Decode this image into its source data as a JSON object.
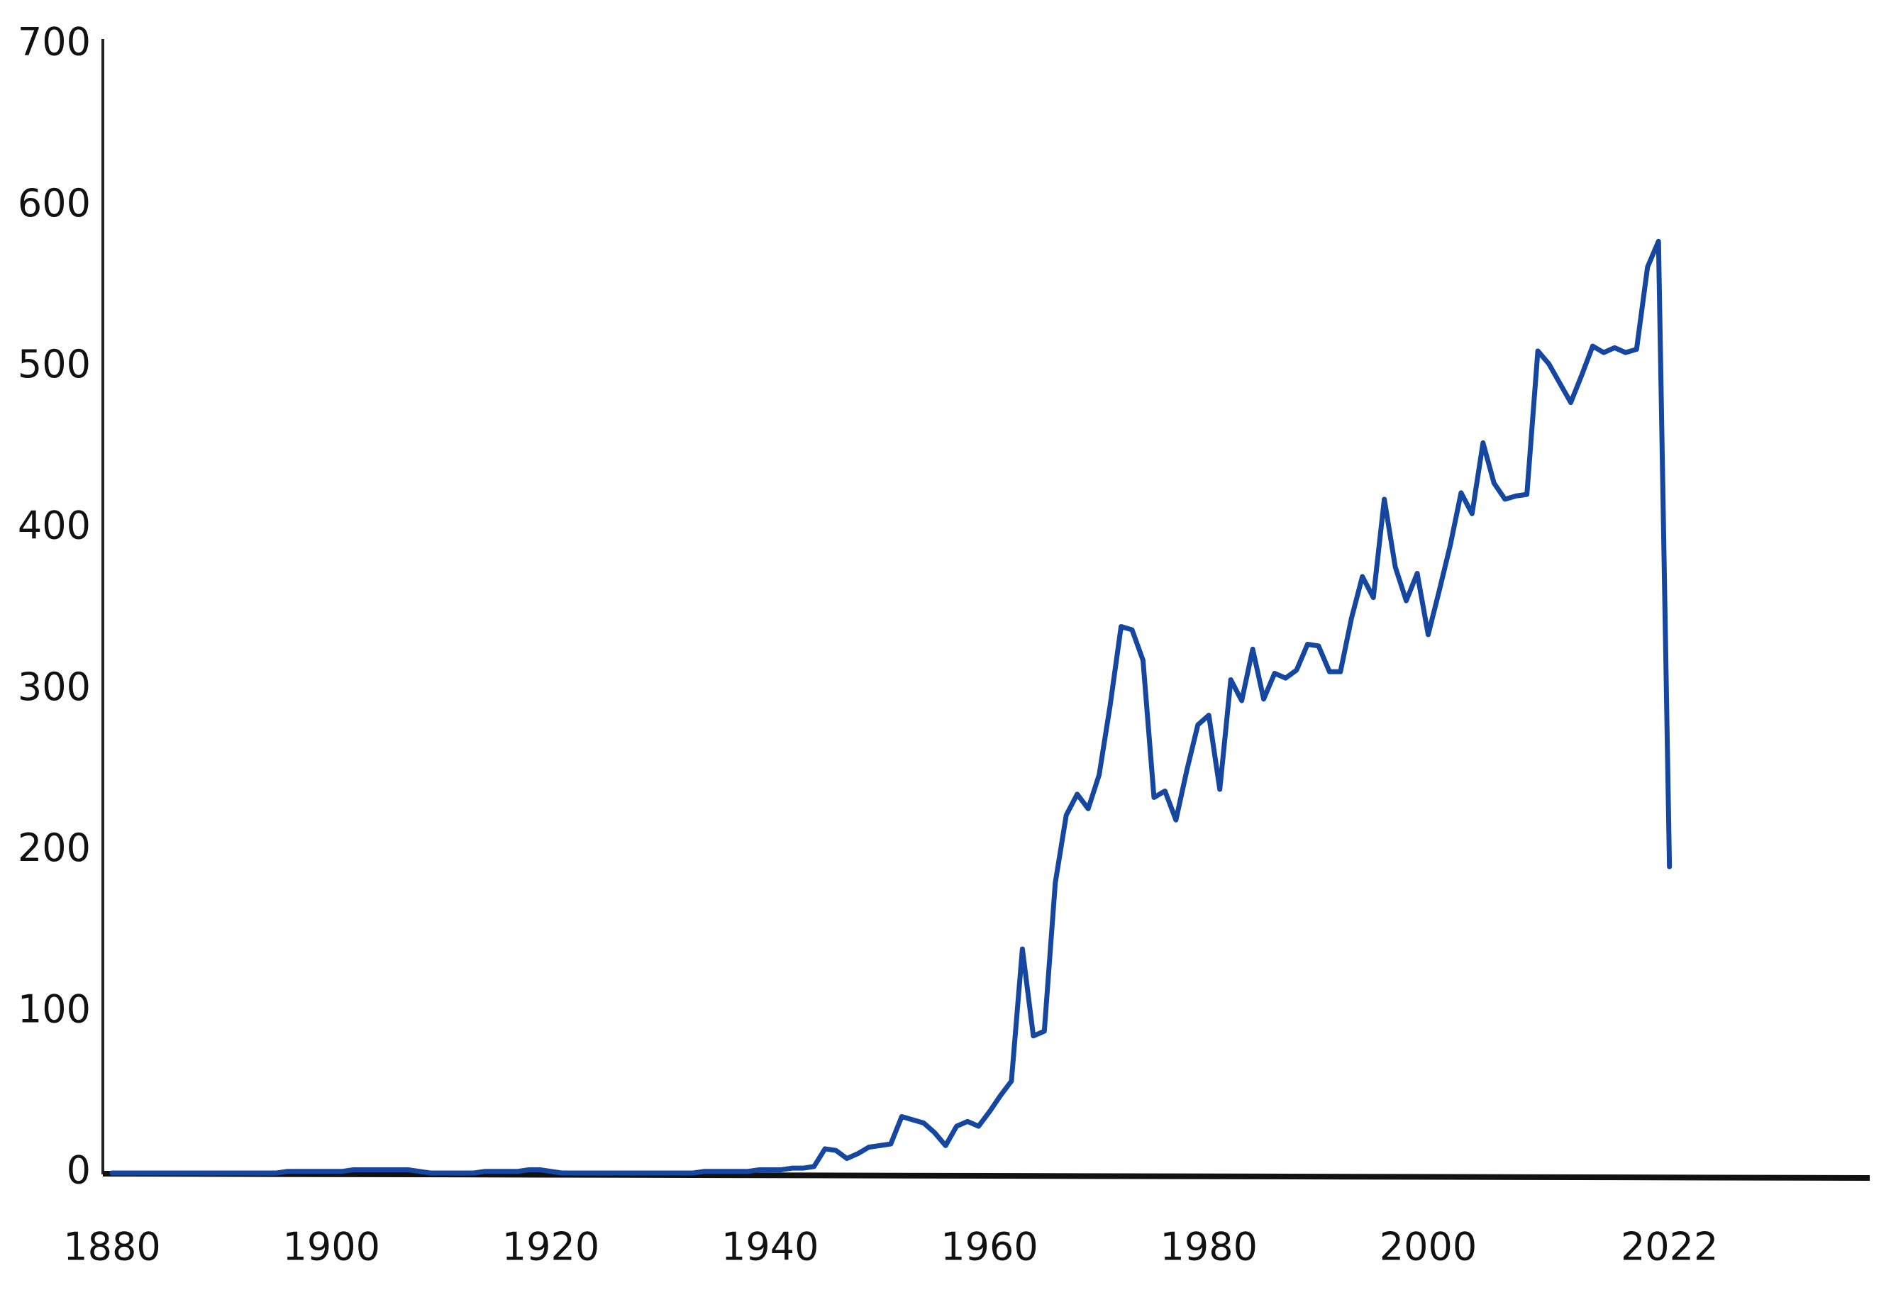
{
  "chart_data": {
    "type": "line",
    "x": [
      1880,
      1881,
      1882,
      1883,
      1884,
      1885,
      1886,
      1887,
      1888,
      1889,
      1890,
      1891,
      1892,
      1893,
      1894,
      1895,
      1896,
      1897,
      1898,
      1899,
      1900,
      1901,
      1902,
      1903,
      1904,
      1905,
      1906,
      1907,
      1908,
      1909,
      1910,
      1911,
      1912,
      1913,
      1914,
      1915,
      1916,
      1917,
      1918,
      1919,
      1920,
      1921,
      1922,
      1923,
      1924,
      1925,
      1926,
      1927,
      1928,
      1929,
      1930,
      1931,
      1932,
      1933,
      1934,
      1935,
      1936,
      1937,
      1938,
      1939,
      1940,
      1941,
      1942,
      1943,
      1944,
      1945,
      1946,
      1947,
      1948,
      1949,
      1950,
      1951,
      1952,
      1953,
      1954,
      1955,
      1956,
      1957,
      1958,
      1959,
      1960,
      1961,
      1962,
      1963,
      1964,
      1965,
      1966,
      1967,
      1968,
      1969,
      1970,
      1971,
      1972,
      1973,
      1974,
      1975,
      1976,
      1977,
      1978,
      1979,
      1980,
      1981,
      1982,
      1983,
      1984,
      1985,
      1986,
      1987,
      1988,
      1989,
      1990,
      1991,
      1992,
      1993,
      1994,
      1995,
      1996,
      1997,
      1998,
      1999,
      2000,
      2001,
      2002,
      2003,
      2004,
      2005,
      2006,
      2007,
      2008,
      2009,
      2010,
      2011,
      2012,
      2013,
      2014,
      2015,
      2016,
      2017,
      2018,
      2019,
      2020,
      2021,
      2022
    ],
    "series": [
      {
        "color": "#1547a0",
        "values": [
          0,
          0,
          0,
          0,
          0,
          0,
          0,
          0,
          0,
          0,
          0,
          0,
          0,
          0,
          0,
          0,
          1,
          1,
          1,
          1,
          1,
          1,
          2,
          2,
          2,
          2,
          2,
          2,
          1,
          0,
          0,
          0,
          0,
          0,
          1,
          1,
          1,
          1,
          2,
          2,
          1,
          0,
          0,
          0,
          0,
          0,
          0,
          0,
          0,
          0,
          0,
          0,
          0,
          0,
          1,
          1,
          1,
          1,
          1,
          2,
          2,
          2,
          3,
          3,
          4,
          15,
          14,
          9,
          12,
          16,
          17,
          18,
          35,
          33,
          31,
          25,
          17,
          29,
          32,
          29,
          38,
          48,
          57,
          139,
          85,
          88,
          180,
          222,
          235,
          226,
          247,
          290,
          339,
          337,
          318,
          233,
          237,
          219,
          250,
          278,
          284,
          238,
          306,
          293,
          325,
          294,
          310,
          307,
          312,
          328,
          327,
          311,
          311,
          344,
          370,
          357,
          418,
          376,
          355,
          372,
          334,
          361,
          389,
          422,
          409,
          453,
          428,
          418,
          420,
          421,
          510,
          502,
          490,
          478,
          495,
          513,
          509,
          512,
          509,
          511,
          562,
          578,
          190
        ]
      }
    ],
    "xlim": [
      1880,
      2040
    ],
    "xticks": [
      1880,
      1900,
      1920,
      1940,
      1960,
      1980,
      2000,
      2022
    ],
    "ylim": [
      0,
      700
    ],
    "yticks": [
      0,
      100,
      200,
      300,
      400,
      500,
      600,
      700
    ],
    "grid": false
  }
}
